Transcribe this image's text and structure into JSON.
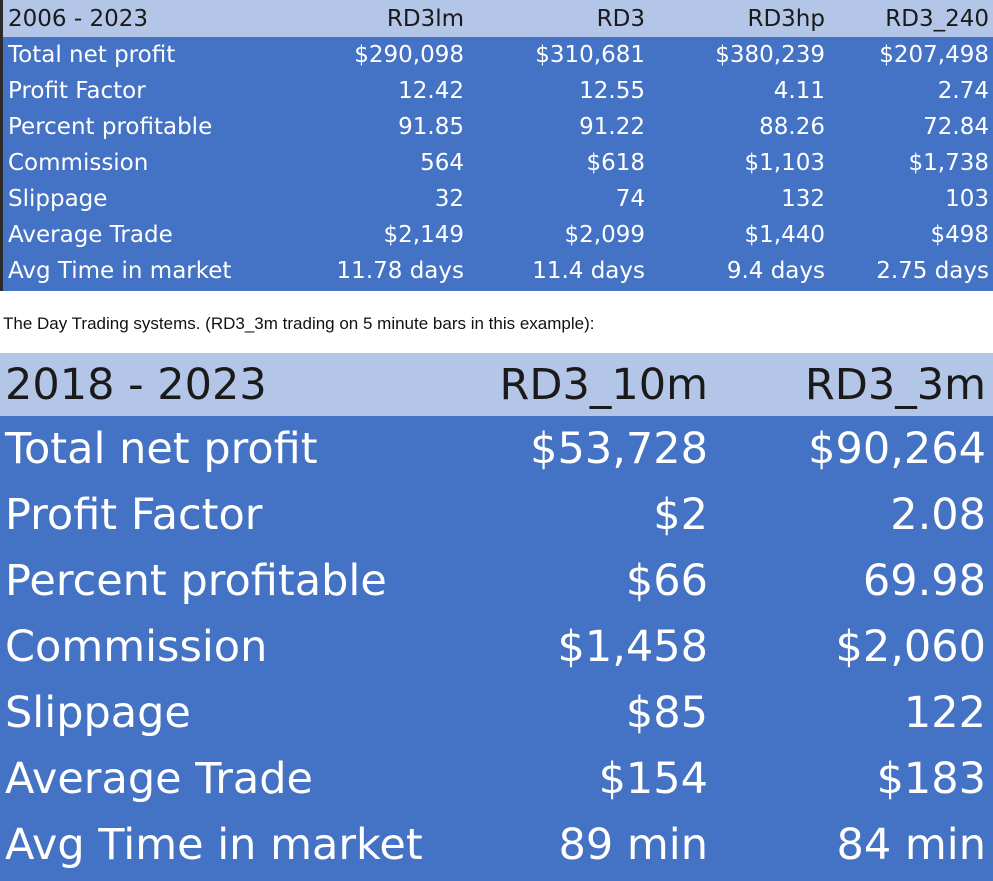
{
  "table1": {
    "header": [
      "2006 - 2023",
      "RD3lm",
      "RD3",
      "RD3hp",
      "RD3_240"
    ],
    "rows": [
      [
        "Total net profit",
        "$290,098",
        "$310,681",
        "$380,239",
        "$207,498"
      ],
      [
        "Profit Factor",
        "12.42",
        "12.55",
        "4.11",
        "2.74"
      ],
      [
        "Percent profitable",
        "91.85",
        "91.22",
        "88.26",
        "72.84"
      ],
      [
        "Commission",
        "564",
        "$618",
        "$1,103",
        "$1,738"
      ],
      [
        "Slippage",
        "32",
        "74",
        "132",
        "103"
      ],
      [
        "Average Trade",
        "$2,149",
        "$2,099",
        "$1,440",
        "$498"
      ],
      [
        "Avg Time in market",
        "11.78 days",
        "11.4 days",
        "9.4 days",
        "2.75 days"
      ]
    ]
  },
  "caption": "The Day Trading systems. (RD3_3m trading on 5 minute bars in this example):",
  "table2": {
    "header": [
      "2018 - 2023",
      "RD3_10m",
      "RD3_3m"
    ],
    "rows": [
      [
        "Total net profit",
        "$53,728",
        "$90,264"
      ],
      [
        "Profit Factor",
        "$2",
        "2.08"
      ],
      [
        "Percent profitable",
        "$66",
        "69.98"
      ],
      [
        "Commission",
        "$1,458",
        "$2,060"
      ],
      [
        "Slippage",
        "$85",
        "122"
      ],
      [
        "Average Trade",
        "$154",
        "$183"
      ],
      [
        "Avg Time in market",
        "89 min",
        "84 min"
      ]
    ]
  },
  "colors": {
    "header_bg": "#b4c6e7",
    "body_bg": "#4472c4",
    "body_text": "#ffffff"
  }
}
